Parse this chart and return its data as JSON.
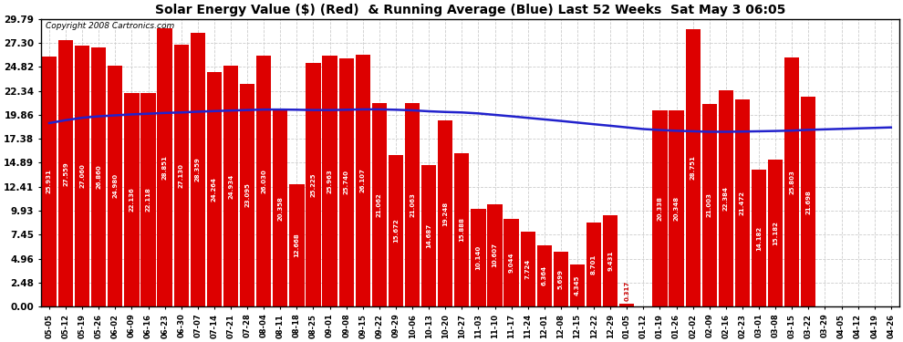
{
  "title": "Solar Energy Value ($) (Red)  & Running Average (Blue) Last 52 Weeks  Sat May 3 06:05",
  "copyright": "Copyright 2008 Cartronics.com",
  "bar_color": "#dd0000",
  "line_color": "#2222cc",
  "background_color": "#ffffff",
  "grid_color": "#cccccc",
  "yticks": [
    0.0,
    2.48,
    4.96,
    7.45,
    9.93,
    12.41,
    14.89,
    17.38,
    19.86,
    22.34,
    24.82,
    27.3,
    29.79
  ],
  "categories": [
    "05-05",
    "05-12",
    "05-19",
    "05-26",
    "06-02",
    "06-09",
    "06-16",
    "06-23",
    "06-30",
    "07-07",
    "07-14",
    "07-21",
    "07-28",
    "08-04",
    "08-11",
    "08-18",
    "08-25",
    "09-01",
    "09-08",
    "09-15",
    "09-22",
    "09-29",
    "10-06",
    "10-13",
    "10-20",
    "10-27",
    "11-03",
    "11-10",
    "11-17",
    "11-24",
    "12-01",
    "12-08",
    "12-15",
    "12-22",
    "12-29",
    "01-05",
    "01-12",
    "01-19",
    "01-26",
    "02-02",
    "02-09",
    "02-16",
    "02-23",
    "03-01",
    "03-08",
    "03-15",
    "03-22",
    "03-29",
    "04-05",
    "04-12",
    "04-19",
    "04-26"
  ],
  "values": [
    25.931,
    27.559,
    27.06,
    26.86,
    24.98,
    22.136,
    22.118,
    28.851,
    27.13,
    28.359,
    24.264,
    24.934,
    23.095,
    26.03,
    20.358,
    12.668,
    25.225,
    25.963,
    25.74,
    26.107,
    21.062,
    15.672,
    21.063,
    14.687,
    19.248,
    15.888,
    10.14,
    10.607,
    9.044,
    7.724,
    6.364,
    5.699,
    4.345,
    8.701,
    9.431,
    0.317,
    0.0,
    20.338,
    20.348,
    28.751,
    21.003,
    22.384,
    21.472,
    14.182,
    15.182,
    25.803,
    21.698,
    0.0,
    0.0,
    0.0,
    0.0,
    0.0
  ],
  "running_avg": [
    19.0,
    19.3,
    19.55,
    19.7,
    19.8,
    19.9,
    19.97,
    20.05,
    20.1,
    20.18,
    20.24,
    20.3,
    20.35,
    20.4,
    20.4,
    20.38,
    20.35,
    20.35,
    20.38,
    20.42,
    20.42,
    20.38,
    20.32,
    20.22,
    20.15,
    20.1,
    20.0,
    19.85,
    19.7,
    19.54,
    19.38,
    19.22,
    19.05,
    18.88,
    18.72,
    18.55,
    18.38,
    18.28,
    18.2,
    18.15,
    18.1,
    18.1,
    18.12,
    18.15,
    18.18,
    18.22,
    18.3,
    18.35,
    18.4,
    18.45,
    18.5,
    18.55
  ],
  "ylim": [
    0,
    29.79
  ],
  "label_fontsize": 5.0,
  "tick_fontsize": 7.5,
  "xtick_fontsize": 6.0,
  "title_fontsize": 10.0,
  "copyright_fontsize": 6.5
}
